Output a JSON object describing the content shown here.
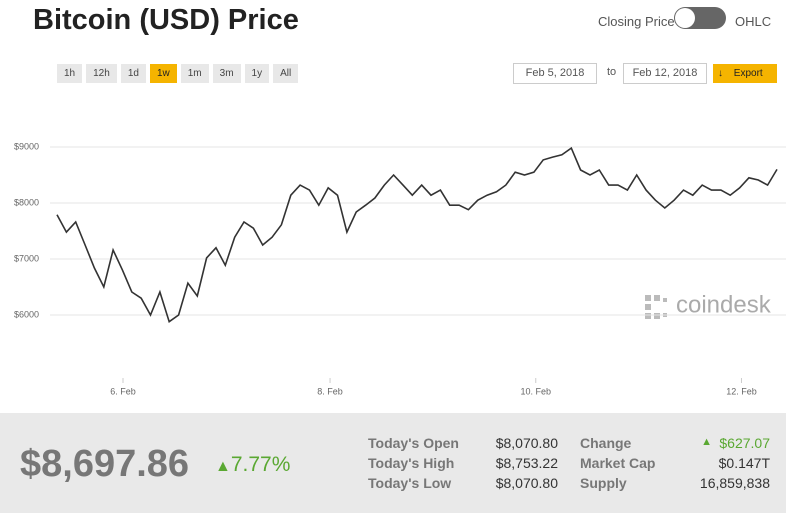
{
  "header": {
    "title": "Bitcoin (USD) Price",
    "toggle_left": "Closing Price",
    "toggle_right": "OHLC"
  },
  "ranges": [
    "1h",
    "12h",
    "1d",
    "1w",
    "1m",
    "3m",
    "1y",
    "All"
  ],
  "active_range": 3,
  "dates": {
    "from": "Feb 5, 2018",
    "to_label": "to",
    "to": "Feb 12, 2018",
    "export": "Export"
  },
  "watermark": "coindesk",
  "chart_data": {
    "type": "line",
    "color": "#333333",
    "grid": true,
    "values": [
      7790,
      7480,
      7660,
      7250,
      6840,
      6500,
      7160,
      6800,
      6410,
      6300,
      6000,
      6410,
      5880,
      6000,
      6570,
      6340,
      7020,
      7200,
      6890,
      7390,
      7660,
      7550,
      7250,
      7390,
      7610,
      8140,
      8320,
      8230,
      7960,
      8270,
      8140,
      7480,
      7840,
      7960,
      8090,
      8320,
      8500,
      8320,
      8140,
      8320,
      8140,
      8230,
      7960,
      7960,
      7880,
      8050,
      8140,
      8200,
      8320,
      8550,
      8500,
      8550,
      8770,
      8820,
      8860,
      8980,
      8590,
      8500,
      8590,
      8320,
      8320,
      8230,
      8500,
      8230,
      8050,
      7910,
      8050,
      8230,
      8140,
      8320,
      8230,
      8230,
      8140,
      8270,
      8450,
      8410,
      8320,
      8600
    ],
    "xlim": [
      0,
      77
    ],
    "xticks": [
      {
        "value": 7.06,
        "label": "6. Feb"
      },
      {
        "value": 29.2,
        "label": "8. Feb"
      },
      {
        "value": 51.2,
        "label": "10. Feb"
      },
      {
        "value": 73.2,
        "label": "12. Feb"
      }
    ],
    "ylim": [
      5000,
      10000
    ],
    "yticks": [
      {
        "value": 6000,
        "label": "$6000"
      },
      {
        "value": 7000,
        "label": "$7000"
      },
      {
        "value": 8000,
        "label": "$8000"
      },
      {
        "value": 9000,
        "label": "$9000"
      }
    ]
  },
  "summary": {
    "price": "$8,697.86",
    "change_pct": "7.77%"
  },
  "stats": [
    [
      "Today's Open",
      "$8,070.80",
      "Change",
      "$627.07"
    ],
    [
      "Today's High",
      "$8,753.22",
      "Market Cap",
      "$0.147T"
    ],
    [
      "Today's Low",
      "$8,070.80",
      "Supply",
      "16,859,838"
    ]
  ]
}
